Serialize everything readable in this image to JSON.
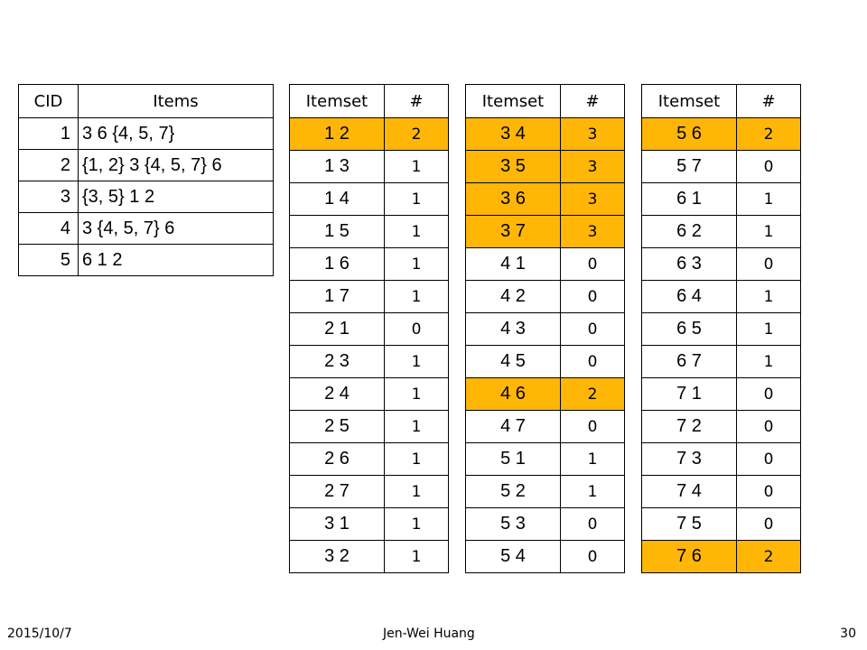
{
  "cid_table": {
    "headers": [
      "CID",
      "Items"
    ],
    "rows": [
      {
        "cid": "1",
        "items": "3 6 {4, 5, 7}"
      },
      {
        "cid": "2",
        "items": "{1, 2} 3 {4, 5, 7} 6"
      },
      {
        "cid": "3",
        "items": "{3, 5} 1 2"
      },
      {
        "cid": "4",
        "items": "3 {4, 5, 7} 6"
      },
      {
        "cid": "5",
        "items": "6 1 2"
      }
    ]
  },
  "itemset_tables": [
    {
      "headers": [
        "Itemset",
        "#"
      ],
      "rows": [
        {
          "itemset": "1 2",
          "count": "2",
          "highlight": true
        },
        {
          "itemset": "1 3",
          "count": "1",
          "highlight": false
        },
        {
          "itemset": "1 4",
          "count": "1",
          "highlight": false
        },
        {
          "itemset": "1 5",
          "count": "1",
          "highlight": false
        },
        {
          "itemset": "1 6",
          "count": "1",
          "highlight": false
        },
        {
          "itemset": "1 7",
          "count": "1",
          "highlight": false
        },
        {
          "itemset": "2 1",
          "count": "0",
          "highlight": false
        },
        {
          "itemset": "2 3",
          "count": "1",
          "highlight": false
        },
        {
          "itemset": "2 4",
          "count": "1",
          "highlight": false
        },
        {
          "itemset": "2 5",
          "count": "1",
          "highlight": false
        },
        {
          "itemset": "2 6",
          "count": "1",
          "highlight": false
        },
        {
          "itemset": "2 7",
          "count": "1",
          "highlight": false
        },
        {
          "itemset": "3 1",
          "count": "1",
          "highlight": false
        },
        {
          "itemset": "3 2",
          "count": "1",
          "highlight": false
        }
      ]
    },
    {
      "headers": [
        "Itemset",
        "#"
      ],
      "rows": [
        {
          "itemset": "3 4",
          "count": "3",
          "highlight": true
        },
        {
          "itemset": "3 5",
          "count": "3",
          "highlight": true
        },
        {
          "itemset": "3 6",
          "count": "3",
          "highlight": true
        },
        {
          "itemset": "3 7",
          "count": "3",
          "highlight": true
        },
        {
          "itemset": "4 1",
          "count": "0",
          "highlight": false
        },
        {
          "itemset": "4 2",
          "count": "0",
          "highlight": false
        },
        {
          "itemset": "4 3",
          "count": "0",
          "highlight": false
        },
        {
          "itemset": "4 5",
          "count": "0",
          "highlight": false
        },
        {
          "itemset": "4 6",
          "count": "2",
          "highlight": true
        },
        {
          "itemset": "4 7",
          "count": "0",
          "highlight": false
        },
        {
          "itemset": "5 1",
          "count": "1",
          "highlight": false
        },
        {
          "itemset": "5 2",
          "count": "1",
          "highlight": false
        },
        {
          "itemset": "5 3",
          "count": "0",
          "highlight": false
        },
        {
          "itemset": "5 4",
          "count": "0",
          "highlight": false
        }
      ]
    },
    {
      "headers": [
        "Itemset",
        "#"
      ],
      "rows": [
        {
          "itemset": "5 6",
          "count": "2",
          "highlight": true
        },
        {
          "itemset": "5 7",
          "count": "0",
          "highlight": false
        },
        {
          "itemset": "6 1",
          "count": "1",
          "highlight": false
        },
        {
          "itemset": "6 2",
          "count": "1",
          "highlight": false
        },
        {
          "itemset": "6 3",
          "count": "0",
          "highlight": false
        },
        {
          "itemset": "6 4",
          "count": "1",
          "highlight": false
        },
        {
          "itemset": "6 5",
          "count": "1",
          "highlight": false
        },
        {
          "itemset": "6 7",
          "count": "1",
          "highlight": false
        },
        {
          "itemset": "7 1",
          "count": "0",
          "highlight": false
        },
        {
          "itemset": "7 2",
          "count": "0",
          "highlight": false
        },
        {
          "itemset": "7 3",
          "count": "0",
          "highlight": false
        },
        {
          "itemset": "7 4",
          "count": "0",
          "highlight": false
        },
        {
          "itemset": "7 5",
          "count": "0",
          "highlight": false
        },
        {
          "itemset": "7 6",
          "count": "2",
          "highlight": true
        }
      ]
    }
  ],
  "highlight_color": "#FFB607",
  "footer": {
    "date": "2015/10/7",
    "author": "Jen-Wei Huang",
    "page": "30"
  }
}
